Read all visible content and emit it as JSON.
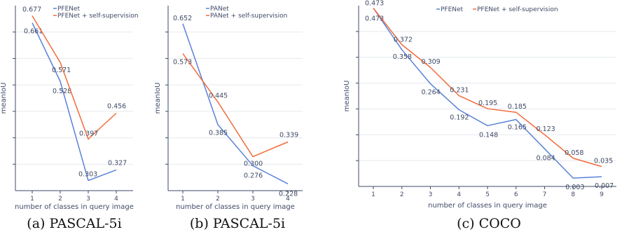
{
  "chart_data": [
    {
      "type": "line",
      "caption": "(a) PASCAL-5i",
      "xlabel": "number of classes in query image",
      "ylabel": "meanIoU",
      "x": [
        1,
        2,
        3,
        4
      ],
      "ylim": [
        0.28,
        0.7
      ],
      "legend": "top-left",
      "grid": true,
      "series": [
        {
          "name": "PFENet",
          "color": "#5a82d8",
          "values": [
            0.661,
            0.528,
            0.303,
            0.327
          ]
        },
        {
          "name": "PFENet + self-supervision",
          "color": "#f26b3a",
          "values": [
            0.677,
            0.571,
            0.397,
            0.456
          ]
        }
      ]
    },
    {
      "type": "line",
      "caption": "(b) PASCAL-5i",
      "xlabel": "number of classes in query image",
      "ylabel": "meanIoU",
      "x": [
        1,
        2,
        3,
        4
      ],
      "ylim": [
        0.21,
        0.7
      ],
      "legend": "top-left",
      "grid": true,
      "series": [
        {
          "name": "PANet",
          "color": "#5a82d8",
          "values": [
            0.652,
            0.385,
            0.276,
            0.228
          ]
        },
        {
          "name": "PANet + self-supervision",
          "color": "#f26b3a",
          "values": [
            0.573,
            0.445,
            0.3,
            0.339
          ]
        }
      ]
    },
    {
      "type": "line",
      "caption": "(c) COCO",
      "xlabel": "number of classes in query image",
      "ylabel": "meanIoU",
      "x": [
        1,
        2,
        3,
        4,
        5,
        6,
        7,
        8,
        9
      ],
      "ylim": [
        -0.02,
        0.48
      ],
      "legend": "top",
      "grid": true,
      "series": [
        {
          "name": "PFENet",
          "color": "#5a82d8",
          "values": [
            0.473,
            0.358,
            0.264,
            0.192,
            0.148,
            0.165,
            0.084,
            0.003,
            0.007
          ]
        },
        {
          "name": "PFENet + self-supervision",
          "color": "#f26b3a",
          "values": [
            0.473,
            0.372,
            0.309,
            0.231,
            0.195,
            0.185,
            0.123,
            0.058,
            0.035
          ]
        }
      ]
    }
  ]
}
